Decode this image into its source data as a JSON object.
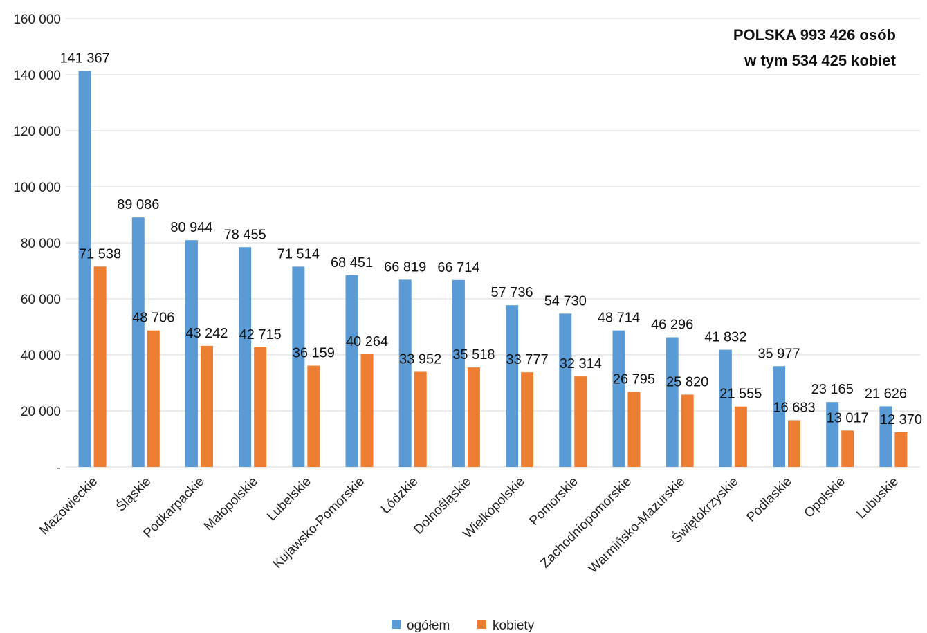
{
  "chart_data": {
    "type": "bar",
    "title": "",
    "xlabel": "",
    "ylabel": "",
    "ylim": [
      0,
      160000
    ],
    "yticks": [
      0,
      20000,
      40000,
      60000,
      80000,
      100000,
      120000,
      140000,
      160000
    ],
    "ytick_labels": [
      "-",
      "20 000",
      "40 000",
      "60 000",
      "80 000",
      "100 000",
      "120 000",
      "140 000",
      "160 000"
    ],
    "grid": true,
    "legend_position": "bottom",
    "annotation": [
      "POLSKA 993 426 osób",
      "w tym 534 425 kobiet"
    ],
    "categories": [
      "Mazowieckie",
      "Śląskie",
      "Podkarpackie",
      "Małopolskie",
      "Lubelskie",
      "Kujawsko-Pomorskie",
      "Łódzkie",
      "Dolnośląskie",
      "Wielkopolskie",
      "Pomorskie",
      "Zachodniopomorskie",
      "Warmińsko-Mazurskie",
      "Świętokrzyskie",
      "Podlaskie",
      "Opolskie",
      "Lubuskie"
    ],
    "series": [
      {
        "name": "ogółem",
        "color": "#5B9BD5",
        "values": [
          141367,
          89086,
          80944,
          78455,
          71514,
          68451,
          66819,
          66714,
          57736,
          54730,
          48714,
          46296,
          41832,
          35977,
          23165,
          21626
        ],
        "labels": [
          "141 367",
          "89 086",
          "80 944",
          "78 455",
          "71 514",
          "68 451",
          "66 819",
          "66 714",
          "57 736",
          "54 730",
          "48 714",
          "46 296",
          "41 832",
          "35 977",
          "23 165",
          "21 626"
        ]
      },
      {
        "name": "kobiety",
        "color": "#ED7D31",
        "values": [
          71538,
          48706,
          43242,
          42715,
          36159,
          40264,
          33952,
          35518,
          33777,
          32314,
          26795,
          25820,
          21555,
          16683,
          13017,
          12370
        ],
        "labels": [
          "71 538",
          "48 706",
          "43 242",
          "42 715",
          "36 159",
          "40 264",
          "33 952",
          "35 518",
          "33 777",
          "32 314",
          "26 795",
          "25 820",
          "21 555",
          "16 683",
          "13 017",
          "12 370"
        ]
      }
    ]
  }
}
